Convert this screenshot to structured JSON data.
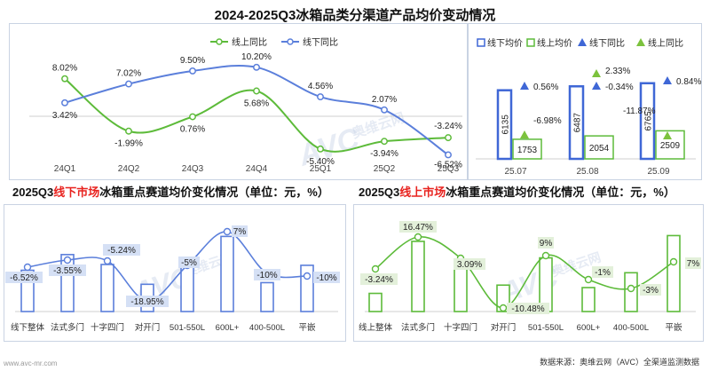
{
  "title": "2024-2025Q3冰箱品类分渠道产品均价变动情况",
  "footer_left": "www.avc-mr.com",
  "footer": "数据来源：奥维云网（AVC）全渠道监测数据",
  "watermark": "AVC",
  "watermark_cn": "奥维云网",
  "chart_data": [
    {
      "type": "line",
      "id": "quarterly",
      "categories": [
        "24Q1",
        "24Q2",
        "24Q3",
        "24Q4",
        "25Q1",
        "25Q2",
        "25Q3"
      ],
      "series": [
        {
          "name": "线上同比",
          "color": "#5dbb3a",
          "values": [
            8.02,
            -1.99,
            0.76,
            5.68,
            -5.4,
            -3.94,
            -3.24
          ],
          "labels": [
            "8.02%",
            "-1.99%",
            "0.76%",
            "5.68%",
            "-5.40%",
            "-3.94%",
            "-3.24%"
          ]
        },
        {
          "name": "线下同比",
          "color": "#5b7fdb",
          "values": [
            3.42,
            7.02,
            9.5,
            10.2,
            4.56,
            2.07,
            -6.52
          ],
          "labels": [
            "3.42%",
            "7.02%",
            "9.50%",
            "10.20%",
            "4.56%",
            "2.07%",
            "-6.52%"
          ]
        }
      ],
      "legend": "top-center"
    },
    {
      "type": "bar",
      "id": "monthly",
      "categories": [
        "25.07",
        "25.08",
        "25.09"
      ],
      "series": [
        {
          "name": "线下均价",
          "color": "#3f67d6",
          "values": [
            6135,
            6487,
            6765
          ]
        },
        {
          "name": "线上均价",
          "color": "#5dbb3a",
          "values": [
            1753,
            2054,
            2509
          ]
        }
      ],
      "markers": [
        {
          "name": "线下同比",
          "color": "#3f67d6",
          "values": [
            0.56,
            -0.34,
            0.84
          ],
          "labels": [
            "0.56%",
            "-0.34%",
            "0.84%"
          ]
        },
        {
          "name": "线上同比",
          "color": "#7cc23d",
          "values": [
            -6.98,
            2.33,
            -11.87
          ],
          "labels": [
            "-6.98%",
            "2.33%",
            "-11.87%"
          ]
        }
      ],
      "legend": "top"
    },
    {
      "type": "bar",
      "id": "offline",
      "title_prefix": "2025Q3",
      "title_highlight": "线下市场",
      "title_suffix": "冰箱重点赛道均价变化情况（单位：元，%）",
      "color": "#5b7fdb",
      "label_bg": "#d5e0f5",
      "categories": [
        "线下整体",
        "法式多门",
        "十字四门",
        "对开门",
        "501-550L",
        "600L+",
        "400-500L",
        "平嵌"
      ],
      "bar_heights": [
        0.5,
        0.69,
        0.57,
        0.33,
        0.57,
        0.91,
        0.35,
        0.56
      ],
      "values": [
        -6.52,
        -3.55,
        -5.24,
        -18.95,
        -5.0,
        7.0,
        -10.0,
        -10.0
      ],
      "labels": [
        "-6.52%",
        "-3.55%",
        "-5.24%",
        "-18.95%",
        "-5%",
        "7%",
        "-10%",
        "-10%"
      ]
    },
    {
      "type": "bar",
      "id": "online",
      "title_prefix": "2025Q3",
      "title_highlight": "线上市场",
      "title_suffix": "冰箱重点赛道均价变化情况（单位：元，%）",
      "color": "#5dbb3a",
      "label_bg": "#e3f0da",
      "categories": [
        "线上整体",
        "法式多门",
        "十字四门",
        "对开门",
        "501-550L",
        "600L+",
        "400-500L",
        "平嵌"
      ],
      "bar_heights": [
        0.22,
        0.85,
        0.55,
        0.32,
        0.65,
        0.29,
        0.47,
        0.92
      ],
      "values": [
        -3.24,
        16.47,
        3.09,
        -10.48,
        9.0,
        -1.0,
        -3.0,
        7.0
      ],
      "labels": [
        "-3.24%",
        "16.47%",
        "3.09%",
        "-10.48%",
        "9%",
        "-1%",
        "-3%",
        "7%"
      ]
    }
  ]
}
